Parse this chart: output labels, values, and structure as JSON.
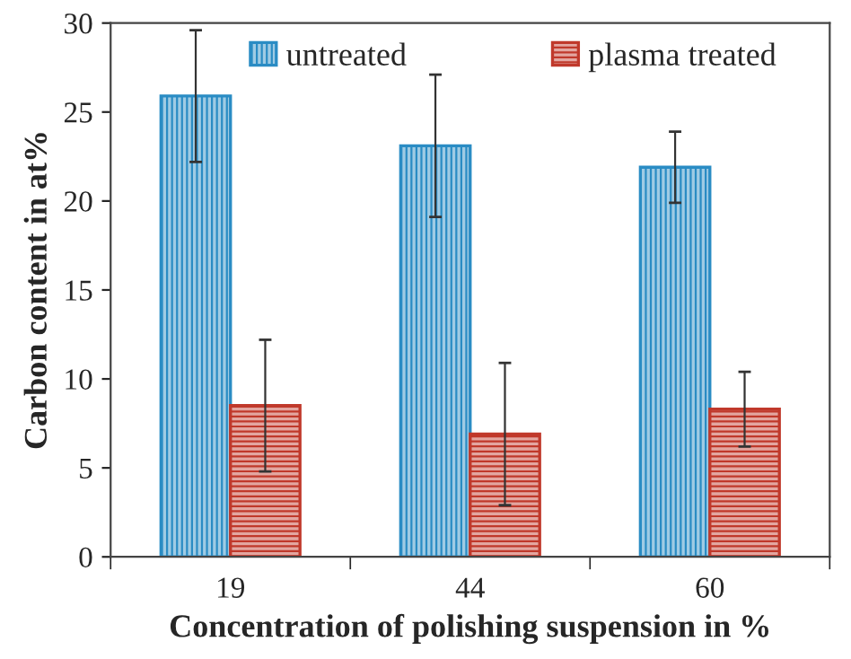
{
  "chart_data": {
    "type": "bar",
    "xlabel": "Concentration of polishing suspension in %",
    "ylabel": "Carbon content in at%",
    "categories": [
      "19",
      "44",
      "60"
    ],
    "series": [
      {
        "name": "untreated",
        "color": "#2a8cc4",
        "values": [
          25.9,
          23.1,
          21.9
        ],
        "errors": [
          3.7,
          4,
          2
        ]
      },
      {
        "name": "plasma treated",
        "color": "#c0392b",
        "values": [
          8.5,
          6.9,
          8.3
        ],
        "errors": [
          3.7,
          4,
          2.1
        ]
      }
    ],
    "ylim": [
      0,
      30
    ],
    "yticks": [
      0,
      5,
      10,
      15,
      20,
      25,
      30
    ],
    "grid": false,
    "legend": "top"
  }
}
